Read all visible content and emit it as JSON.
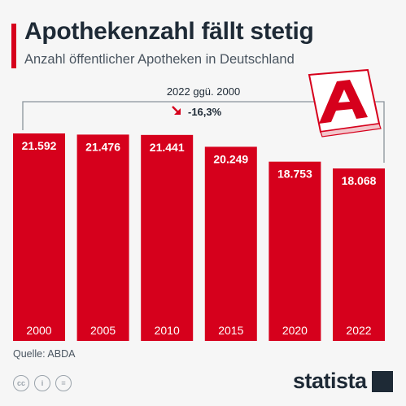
{
  "header": {
    "title": "Apothekenzahl fällt stetig",
    "subtitle": "Anzahl öffentlicher Apotheken in Deutschland"
  },
  "chart_data": {
    "type": "bar",
    "categories": [
      "2000",
      "2005",
      "2010",
      "2015",
      "2020",
      "2022"
    ],
    "values": [
      21592,
      21476,
      21441,
      20249,
      18753,
      18068
    ],
    "value_labels": [
      "21.592",
      "21.476",
      "21.441",
      "20.249",
      "18.753",
      "18.068"
    ],
    "title": "Apothekenzahl fällt stetig",
    "subtitle": "Anzahl öffentlicher Apotheken in Deutschland",
    "ylim": [
      0,
      21592
    ],
    "grid": false,
    "bar_color": "#d6001c",
    "annotation": {
      "label": "2022 ggü. 2000",
      "change": "-16,3%",
      "arrow_color": "#d6001c"
    }
  },
  "footer": {
    "source": "Quelle: ABDA",
    "license_icons": [
      "cc-icon",
      "by-icon",
      "nd-icon"
    ],
    "brand": "statista",
    "brand_color": "#1e2a36"
  },
  "illustration": {
    "icon": "pharmacy-a-icon",
    "color": "#d6001c"
  }
}
